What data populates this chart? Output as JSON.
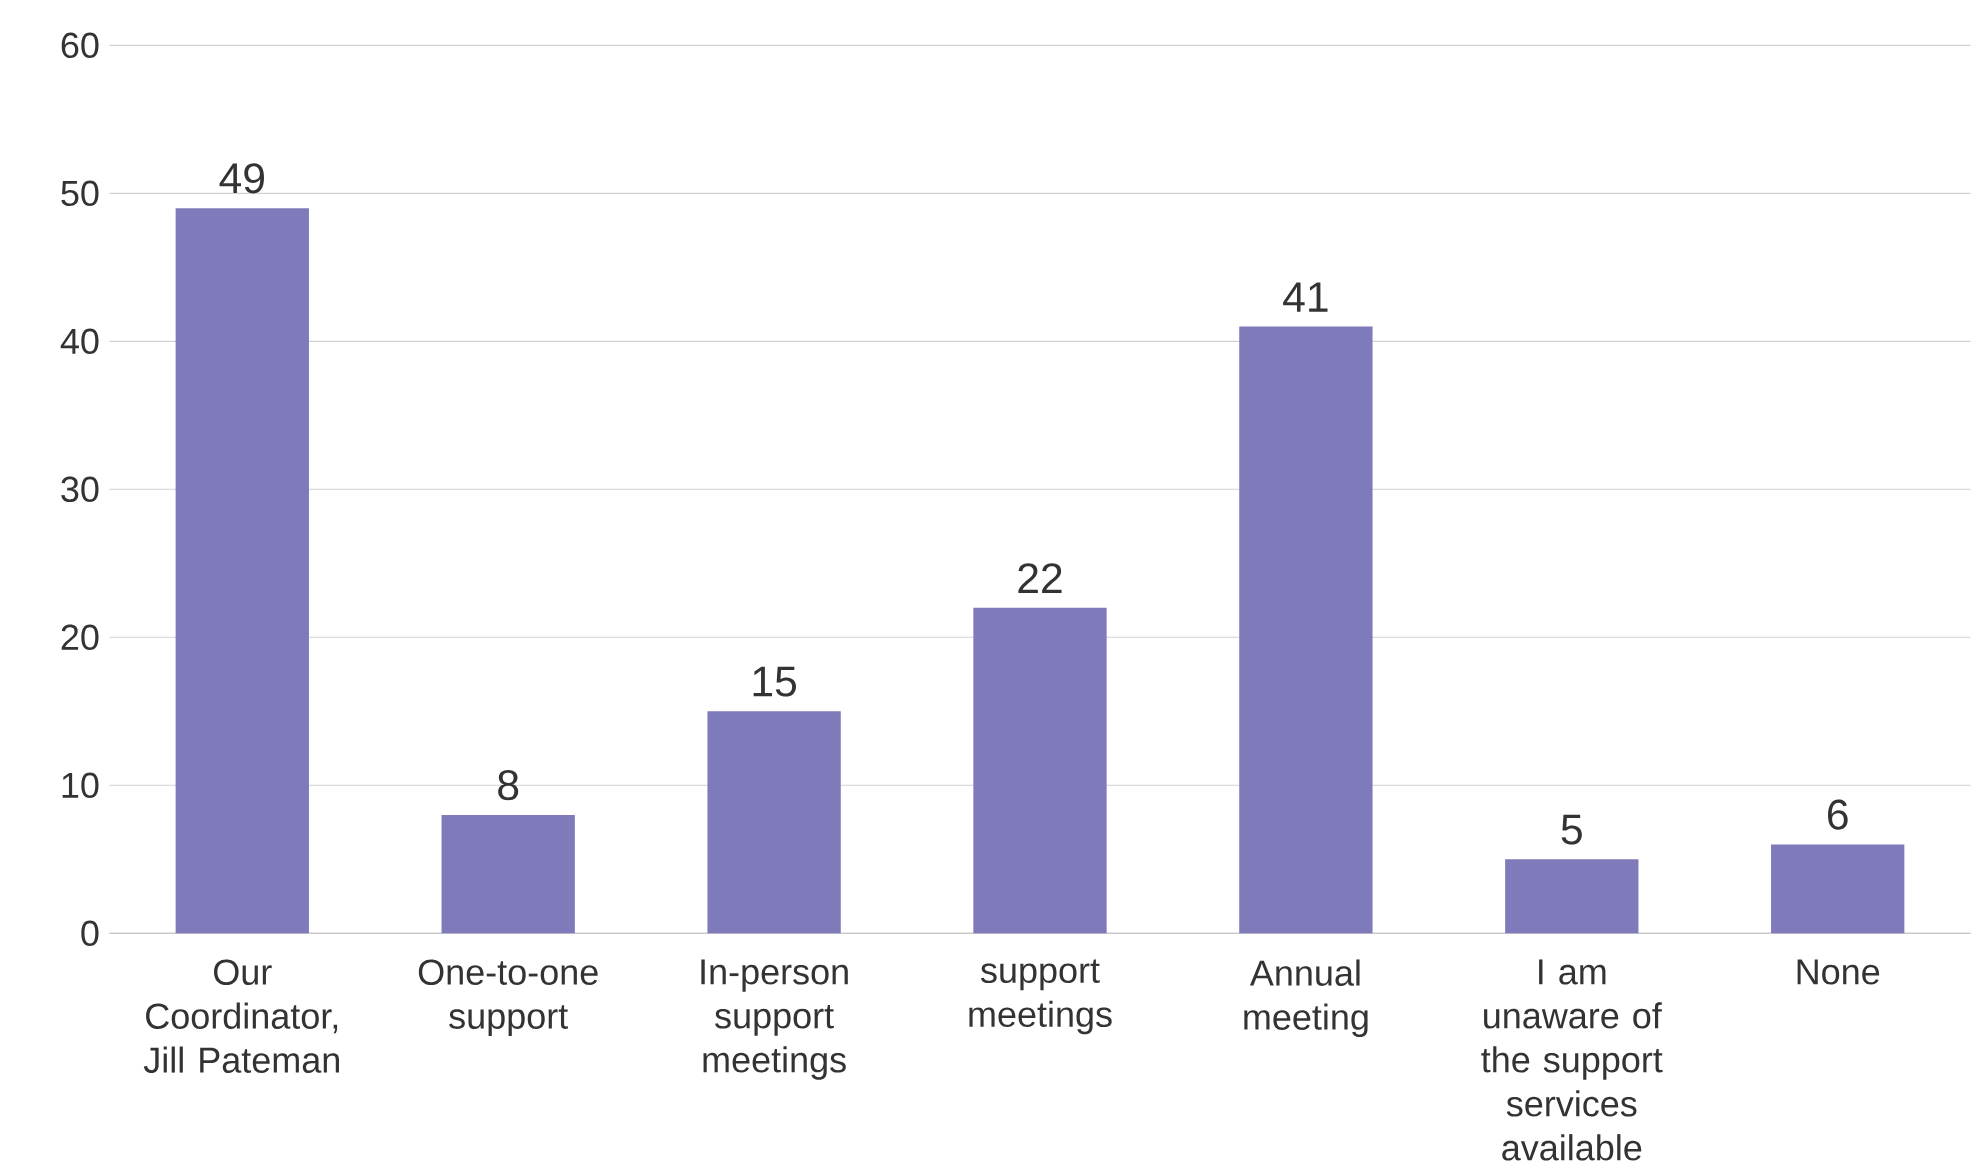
{
  "chart_data": {
    "type": "bar",
    "categories": [
      "Our Coordinator, Jill Pateman",
      "One-to-one support",
      "In-person support meetings",
      "support meetings",
      "Annual meeting",
      "I am unaware of the support services available",
      "None"
    ],
    "values": [
      49,
      8,
      15,
      22,
      41,
      5,
      6
    ],
    "color": "#7f7bbb",
    "ylim": [
      0,
      60
    ],
    "yticks": [
      0,
      10,
      20,
      30,
      40,
      50,
      60
    ],
    "grid": "y",
    "data_labels": true
  }
}
